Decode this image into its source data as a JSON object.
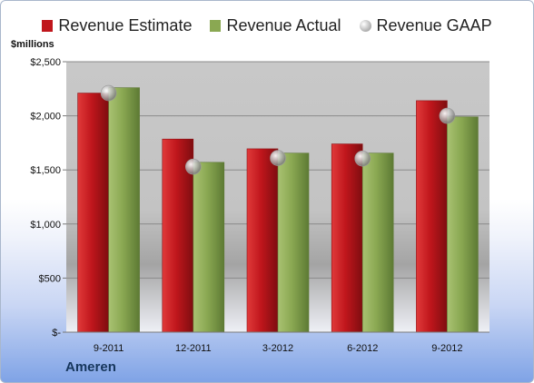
{
  "chart_data": {
    "type": "bar",
    "units_label": "$millions",
    "categories": [
      "9-2011",
      "12-2011",
      "3-2012",
      "6-2012",
      "9-2012"
    ],
    "series": [
      {
        "name": "Revenue Estimate",
        "kind": "bar",
        "color": "#c0161c",
        "values": [
          2210,
          1785,
          1695,
          1740,
          2140
        ]
      },
      {
        "name": "Revenue Actual",
        "kind": "bar",
        "color": "#8aa852",
        "values": [
          2260,
          1570,
          1655,
          1655,
          1990
        ]
      },
      {
        "name": "Revenue GAAP",
        "kind": "marker",
        "color": "#b8b8b8",
        "values": [
          2210,
          1530,
          1610,
          1605,
          2000
        ]
      }
    ],
    "ylim": [
      0,
      2500
    ],
    "yticks": [
      {
        "value": 0,
        "label": "$-"
      },
      {
        "value": 500,
        "label": "$500"
      },
      {
        "value": 1000,
        "label": "$1,000"
      },
      {
        "value": 1500,
        "label": "$1,500"
      },
      {
        "value": 2000,
        "label": "$2,000"
      },
      {
        "value": 2500,
        "label": "$2,500"
      }
    ],
    "grid": true,
    "legend_position": "top"
  },
  "company": "Ameren"
}
